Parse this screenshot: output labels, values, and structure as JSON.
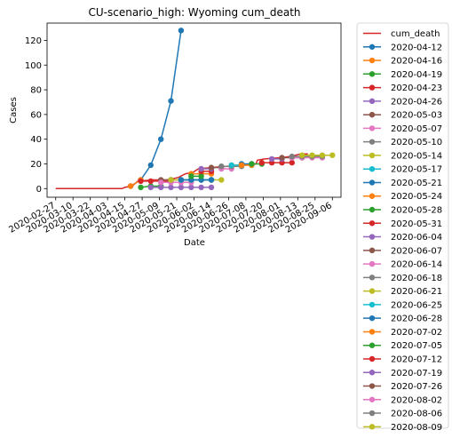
{
  "chart_data": {
    "type": "line",
    "title": "CU-scenario_high: Wyoming cum_death",
    "xlabel": "Date",
    "ylabel": "Cases",
    "ylim": [
      -7,
      134
    ],
    "yticks": [
      0,
      20,
      40,
      60,
      80,
      100,
      120
    ],
    "xrange": [
      "2020-02-21",
      "2020-09-12"
    ],
    "xticks": [
      "2020-02-27",
      "2020-03-10",
      "2020-03-22",
      "2020-04-03",
      "2020-04-15",
      "2020-04-27",
      "2020-05-09",
      "2020-05-21",
      "2020-06-02",
      "2020-06-14",
      "2020-06-26",
      "2020-07-08",
      "2020-07-20",
      "2020-08-01",
      "2020-08-13",
      "2020-08-25",
      "2020-09-06"
    ],
    "legend_position": "outside-right",
    "observed": {
      "name": "cum_death",
      "color": "#d62728",
      "points": [
        [
          "2020-02-27",
          0
        ],
        [
          "2020-04-13",
          0
        ],
        [
          "2020-04-15",
          1
        ],
        [
          "2020-04-20",
          2
        ],
        [
          "2020-04-24",
          6
        ],
        [
          "2020-05-05",
          7
        ],
        [
          "2020-05-14",
          7
        ],
        [
          "2020-05-22",
          9
        ],
        [
          "2020-05-27",
          12
        ],
        [
          "2020-06-01",
          13
        ],
        [
          "2020-06-05",
          16
        ],
        [
          "2020-06-14",
          17
        ],
        [
          "2020-06-24",
          18
        ],
        [
          "2020-07-08",
          19
        ],
        [
          "2020-07-15",
          20
        ],
        [
          "2020-07-16",
          23
        ],
        [
          "2020-07-21",
          24
        ],
        [
          "2020-08-01",
          25
        ],
        [
          "2020-08-08",
          26
        ],
        [
          "2020-08-15",
          28
        ],
        [
          "2020-08-20",
          28
        ]
      ]
    },
    "series": [
      {
        "name": "2020-04-12",
        "color": "#1f77b4",
        "x": [
          "2020-04-19",
          "2020-04-26",
          "2020-05-03",
          "2020-05-10",
          "2020-05-17",
          "2020-05-24"
        ],
        "y": [
          2,
          7,
          19,
          40,
          71,
          128
        ]
      },
      {
        "name": "2020-04-16",
        "color": "#ff7f0e",
        "x": [
          "2020-04-19",
          "2020-04-26"
        ],
        "y": [
          2,
          7
        ]
      },
      {
        "name": "2020-04-19",
        "color": "#2ca02c",
        "x": [
          "2020-04-26",
          "2020-05-03",
          "2020-05-10"
        ],
        "y": [
          1,
          2,
          2
        ]
      },
      {
        "name": "2020-04-23",
        "color": "#d62728",
        "x": [
          "2020-04-26",
          "2020-05-03",
          "2020-05-10",
          "2020-05-17"
        ],
        "y": [
          6,
          6,
          6,
          6
        ]
      },
      {
        "name": "2020-04-26",
        "color": "#9467bd",
        "x": [
          "2020-05-03",
          "2020-05-10",
          "2020-05-17",
          "2020-05-24",
          "2020-05-31",
          "2020-06-07",
          "2020-06-14"
        ],
        "y": [
          1,
          1,
          1,
          1,
          1,
          1,
          1
        ]
      },
      {
        "name": "2020-05-03",
        "color": "#8c564b",
        "x": [
          "2020-05-10",
          "2020-05-17"
        ],
        "y": [
          7,
          7
        ]
      },
      {
        "name": "2020-05-07",
        "color": "#e377c2",
        "x": [
          "2020-05-10",
          "2020-05-17",
          "2020-05-24",
          "2020-05-31"
        ],
        "y": [
          5,
          5,
          5,
          5
        ]
      },
      {
        "name": "2020-05-10",
        "color": "#7f7f7f",
        "x": [
          "2020-05-17",
          "2020-05-24",
          "2020-05-31",
          "2020-06-07",
          "2020-06-14"
        ],
        "y": [
          7,
          7,
          7,
          7,
          7
        ]
      },
      {
        "name": "2020-05-14",
        "color": "#bcbd22",
        "x": [
          "2020-05-17",
          "2020-05-24",
          "2020-05-31",
          "2020-06-07",
          "2020-06-14",
          "2020-06-21"
        ],
        "y": [
          7,
          7,
          7,
          7,
          7,
          7
        ]
      },
      {
        "name": "2020-05-17",
        "color": "#17becf",
        "x": [
          "2020-05-24",
          "2020-05-31",
          "2020-06-07",
          "2020-06-14"
        ],
        "y": [
          7,
          7,
          7,
          7
        ]
      },
      {
        "name": "2020-05-21",
        "color": "#1f77b4",
        "x": [
          "2020-05-24",
          "2020-05-31",
          "2020-06-07",
          "2020-06-14"
        ],
        "y": [
          7,
          7,
          7,
          7
        ]
      },
      {
        "name": "2020-05-24",
        "color": "#ff7f0e",
        "x": [
          "2020-05-31",
          "2020-06-07",
          "2020-06-14"
        ],
        "y": [
          12,
          12,
          12
        ]
      },
      {
        "name": "2020-05-28",
        "color": "#2ca02c",
        "x": [
          "2020-05-31",
          "2020-06-07"
        ],
        "y": [
          10,
          10
        ]
      },
      {
        "name": "2020-05-31",
        "color": "#d62728",
        "x": [
          "2020-06-07",
          "2020-06-14"
        ],
        "y": [
          14,
          14
        ]
      },
      {
        "name": "2020-06-04",
        "color": "#9467bd",
        "x": [
          "2020-06-07",
          "2020-06-14"
        ],
        "y": [
          16,
          16
        ]
      },
      {
        "name": "2020-06-07",
        "color": "#8c564b",
        "x": [
          "2020-06-14",
          "2020-06-21"
        ],
        "y": [
          17,
          17
        ]
      },
      {
        "name": "2020-06-14",
        "color": "#e377c2",
        "x": [
          "2020-06-21",
          "2020-06-28"
        ],
        "y": [
          16,
          16
        ]
      },
      {
        "name": "2020-06-18",
        "color": "#7f7f7f",
        "x": [
          "2020-06-21",
          "2020-06-28",
          "2020-07-05"
        ],
        "y": [
          18,
          18,
          18
        ]
      },
      {
        "name": "2020-06-21",
        "color": "#bcbd22",
        "x": [
          "2020-06-28",
          "2020-07-05"
        ],
        "y": [
          19,
          19
        ]
      },
      {
        "name": "2020-06-25",
        "color": "#17becf",
        "x": [
          "2020-06-28",
          "2020-07-05",
          "2020-07-12"
        ],
        "y": [
          19,
          19,
          19
        ]
      },
      {
        "name": "2020-06-28",
        "color": "#1f77b4",
        "x": [
          "2020-07-05",
          "2020-07-12"
        ],
        "y": [
          20,
          20
        ]
      },
      {
        "name": "2020-07-02",
        "color": "#ff7f0e",
        "x": [
          "2020-07-05",
          "2020-07-12"
        ],
        "y": [
          19,
          19
        ]
      },
      {
        "name": "2020-07-05",
        "color": "#2ca02c",
        "x": [
          "2020-07-12",
          "2020-07-19"
        ],
        "y": [
          20,
          20
        ]
      },
      {
        "name": "2020-07-12",
        "color": "#d62728",
        "x": [
          "2020-07-19",
          "2020-07-26",
          "2020-08-02",
          "2020-08-09"
        ],
        "y": [
          21,
          21,
          21,
          21
        ]
      },
      {
        "name": "2020-07-19",
        "color": "#9467bd",
        "x": [
          "2020-07-26",
          "2020-08-02"
        ],
        "y": [
          24,
          24
        ]
      },
      {
        "name": "2020-07-26",
        "color": "#8c564b",
        "x": [
          "2020-08-02",
          "2020-08-09",
          "2020-08-16"
        ],
        "y": [
          25,
          25,
          25
        ]
      },
      {
        "name": "2020-08-02",
        "color": "#e377c2",
        "x": [
          "2020-08-09",
          "2020-08-16",
          "2020-08-23",
          "2020-08-30"
        ],
        "y": [
          25,
          25,
          25,
          25
        ]
      },
      {
        "name": "2020-08-06",
        "color": "#7f7f7f",
        "x": [
          "2020-08-09",
          "2020-08-16",
          "2020-08-23",
          "2020-08-30"
        ],
        "y": [
          26,
          26,
          26,
          26
        ]
      },
      {
        "name": "2020-08-09",
        "color": "#bcbd22",
        "x": [
          "2020-08-16",
          "2020-08-23",
          "2020-08-30",
          "2020-09-06"
        ],
        "y": [
          27,
          27,
          27,
          27
        ]
      }
    ]
  }
}
